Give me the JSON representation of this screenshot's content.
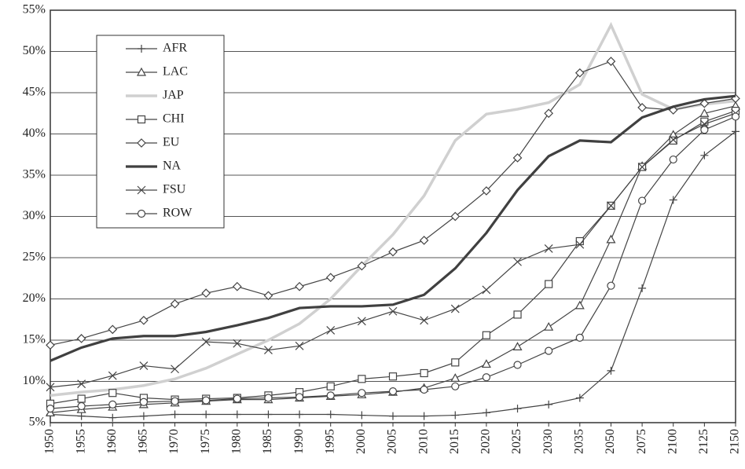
{
  "chart_data": {
    "type": "line",
    "categories": [
      "1950",
      "1955",
      "1960",
      "1965",
      "1970",
      "1975",
      "1980",
      "1985",
      "1990",
      "1995",
      "2000",
      "2005",
      "2010",
      "2015",
      "2020",
      "2025",
      "2030",
      "2035",
      "2050",
      "2075",
      "2100",
      "2125",
      "2150"
    ],
    "ylim": [
      5,
      55
    ],
    "yticks": [
      {
        "value": 5,
        "label": "5%"
      },
      {
        "value": 10,
        "label": "10%"
      },
      {
        "value": 15,
        "label": "15%"
      },
      {
        "value": 20,
        "label": "20%"
      },
      {
        "value": 25,
        "label": "25%"
      },
      {
        "value": 30,
        "label": "30%"
      },
      {
        "value": 35,
        "label": "35%"
      },
      {
        "value": 40,
        "label": "40%"
      },
      {
        "value": 45,
        "label": "45%"
      },
      {
        "value": 50,
        "label": "50%"
      },
      {
        "value": 55,
        "label": "55%"
      }
    ],
    "grid": true,
    "legend": "upper-left",
    "series": [
      {
        "name": "AFR",
        "color": "#444444",
        "width": 1.2,
        "marker": "plus",
        "values": [
          6.0,
          5.8,
          5.6,
          5.8,
          6.0,
          6.0,
          6.0,
          6.0,
          6.0,
          6.0,
          5.9,
          5.8,
          5.8,
          5.9,
          6.2,
          6.7,
          7.2,
          8.0,
          11.3,
          21.3,
          32.0,
          37.4,
          40.3
        ]
      },
      {
        "name": "LAC",
        "color": "#444444",
        "width": 1.2,
        "marker": "triangle",
        "values": [
          6.2,
          6.6,
          6.9,
          7.2,
          7.4,
          7.6,
          7.8,
          7.8,
          8.0,
          8.2,
          8.4,
          8.7,
          9.2,
          10.4,
          12.1,
          14.2,
          16.6,
          19.2,
          27.2,
          36.1,
          39.9,
          42.5,
          43.4
        ]
      },
      {
        "name": "JAP",
        "color": "#d0d0d0",
        "width": 3.5,
        "marker": "none",
        "values": [
          8.3,
          8.7,
          9.0,
          9.5,
          10.3,
          11.6,
          13.3,
          15.0,
          17.0,
          20.0,
          24.0,
          27.8,
          32.5,
          39.2,
          42.4,
          43.0,
          43.8,
          46.0,
          53.2,
          44.8,
          43.0,
          43.6,
          44.0
        ]
      },
      {
        "name": "CHI",
        "color": "#444444",
        "width": 1.2,
        "marker": "square",
        "values": [
          7.3,
          7.9,
          8.6,
          8.0,
          7.8,
          7.9,
          8.0,
          8.3,
          8.7,
          9.4,
          10.3,
          10.6,
          11.0,
          12.3,
          15.6,
          18.1,
          21.8,
          27.0,
          31.3,
          36.0,
          39.2,
          41.5,
          42.8
        ]
      },
      {
        "name": "EU",
        "color": "#444444",
        "width": 1.2,
        "marker": "diamond",
        "values": [
          14.4,
          15.2,
          16.3,
          17.4,
          19.4,
          20.7,
          21.5,
          20.4,
          21.5,
          22.6,
          24.0,
          25.7,
          27.1,
          30.0,
          33.1,
          37.1,
          42.5,
          47.4,
          48.8,
          43.2,
          42.9,
          43.7,
          44.3
        ]
      },
      {
        "name": "NA",
        "color": "#404040",
        "width": 3.2,
        "marker": "none",
        "values": [
          12.5,
          14.1,
          15.2,
          15.5,
          15.5,
          16.0,
          16.8,
          17.7,
          18.9,
          19.1,
          19.1,
          19.3,
          20.5,
          23.7,
          28.0,
          33.2,
          37.3,
          39.2,
          39.0,
          42.0,
          43.3,
          44.2,
          44.6
        ]
      },
      {
        "name": "FSU",
        "color": "#444444",
        "width": 1.2,
        "marker": "x",
        "values": [
          9.3,
          9.7,
          10.7,
          11.9,
          11.5,
          14.8,
          14.6,
          13.8,
          14.3,
          16.2,
          17.3,
          18.5,
          17.4,
          18.8,
          21.1,
          24.5,
          26.1,
          26.6,
          31.3,
          36.0,
          39.3,
          41.2,
          42.5
        ]
      },
      {
        "name": "ROW",
        "color": "#444444",
        "width": 1.2,
        "marker": "circle",
        "values": [
          6.7,
          7.0,
          7.2,
          7.5,
          7.6,
          7.7,
          7.9,
          8.0,
          8.1,
          8.3,
          8.6,
          8.8,
          9.0,
          9.4,
          10.5,
          12.0,
          13.7,
          15.3,
          21.6,
          31.9,
          36.9,
          40.5,
          42.1
        ]
      }
    ]
  }
}
